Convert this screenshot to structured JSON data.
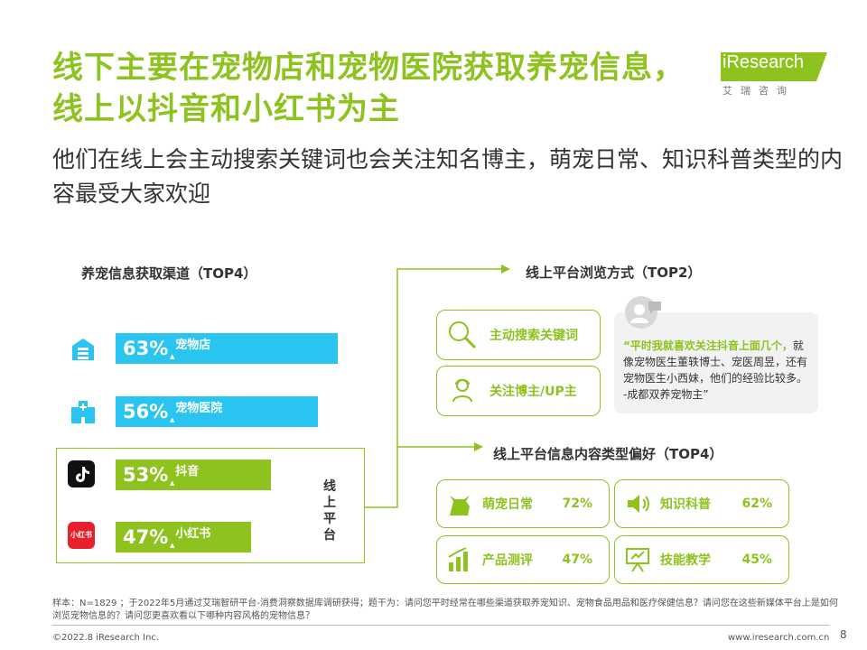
{
  "header": {
    "title": "线下主要在宠物店和宠物医院获取养宠信息，线上以抖音和小红书为主",
    "subtitle": "他们在线上会主动搜索关键词也会关注知名博主，萌宠日常、知识科普类型的内容最受大家欢迎",
    "logo_text": "iResearch",
    "logo_sub": "艾瑞咨询"
  },
  "left": {
    "section_title": "养宠信息获取渠道（TOP4）",
    "channels": [
      {
        "pct": "63%",
        "label": "宠物店",
        "value": 63,
        "icon": "store-icon",
        "color": "#29c5f0"
      },
      {
        "pct": "56%",
        "label": "宠物医院",
        "value": 56,
        "icon": "hospital-icon",
        "color": "#29c5f0"
      },
      {
        "pct": "53%",
        "label": "抖音",
        "value": 53,
        "icon": "douyin-icon",
        "color": "#8dc21f"
      },
      {
        "pct": "47%",
        "label": "小红书",
        "value": 47,
        "icon": "xiaohongshu-icon",
        "color": "#8dc21f"
      }
    ],
    "online_label": "线上平台",
    "xhs_icon_text": "小红书"
  },
  "right": {
    "browse_title": "线上平台浏览方式（TOP2）",
    "browse": [
      {
        "label": "主动搜索关键词",
        "icon": "search-icon"
      },
      {
        "label": "关注博主/UP主",
        "icon": "blogger-icon"
      }
    ],
    "quote": {
      "highlight": "“平时我就喜欢关注抖音上面几个，",
      "body": "就像宠物医生董轶博士、宠医周昱，还有宠物医生小西妹，他们的经验比较多。 -成都双养宠物主”"
    },
    "content_title": "线上平台信息内容类型偏好（TOP4）",
    "content": [
      {
        "label": "萌宠日常",
        "pct": "72%",
        "icon": "cat-icon"
      },
      {
        "label": "知识科普",
        "pct": "62%",
        "icon": "speaker-icon"
      },
      {
        "label": "产品测评",
        "pct": "47%",
        "icon": "bar-chart-icon"
      },
      {
        "label": "技能教学",
        "pct": "45%",
        "icon": "presentation-icon"
      }
    ]
  },
  "footer": {
    "note": "样本：N=1829 ；于2022年5月通过艾瑞智研平台-消费洞察数据库调研获得；题干为：请问您平时经常在哪些渠道获取养宠知识、宠物食品用品和医疗保健信息？请问您在这些新媒体平台上是如何浏览宠物信息的？请问您更喜欢看以下哪种内容风格的宠物信息？",
    "copyright": "©2022.8 iResearch Inc.",
    "site": "www.iresearch.com.cn",
    "page": "8"
  },
  "colors": {
    "green": "#8dc21f",
    "blue": "#29c5f0",
    "text": "#333333"
  }
}
